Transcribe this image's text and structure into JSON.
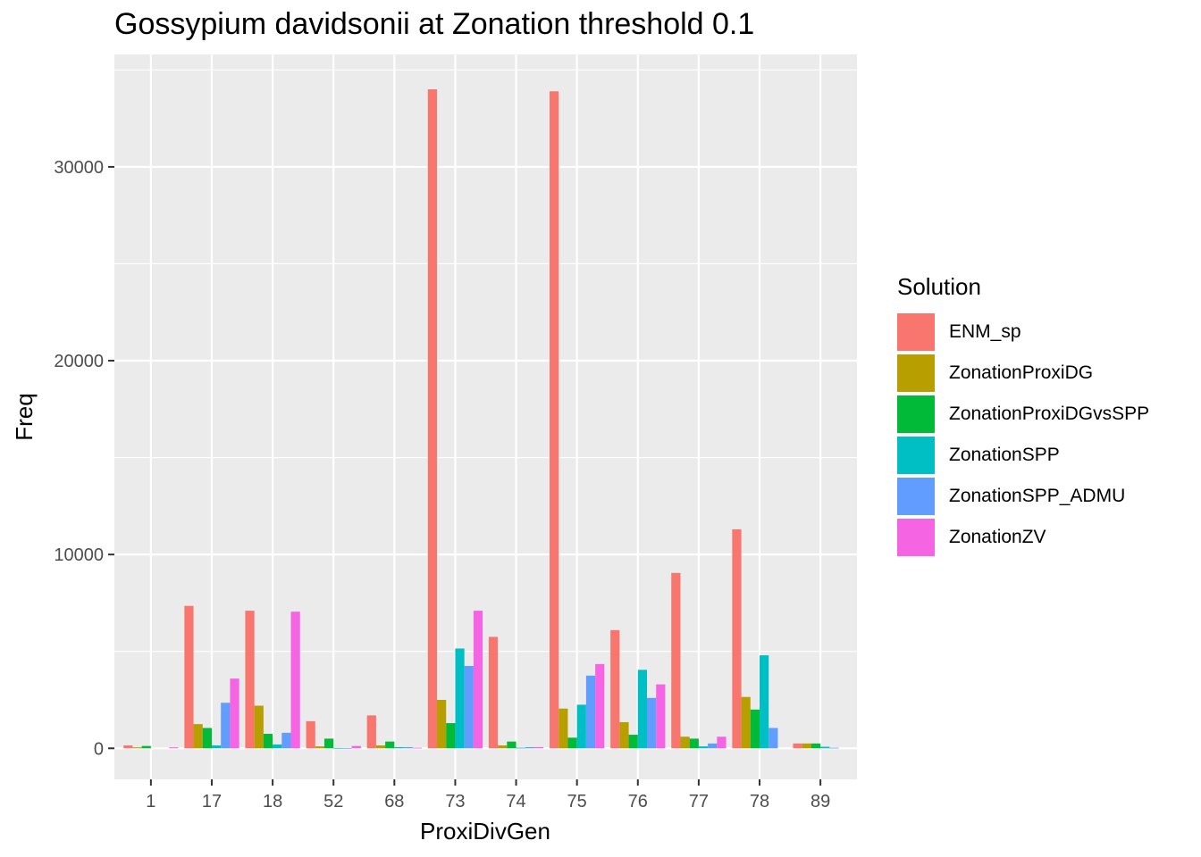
{
  "chart_data": {
    "type": "bar",
    "title": "Gossypium davidsonii at Zonation threshold 0.1",
    "xlabel": "ProxiDivGen",
    "ylabel": "Freq",
    "categories": [
      "1",
      "17",
      "18",
      "52",
      "68",
      "73",
      "74",
      "75",
      "76",
      "77",
      "78",
      "89"
    ],
    "ylim": [
      -1600,
      35800
    ],
    "yticks": [
      0,
      10000,
      20000,
      30000
    ],
    "grid": true,
    "legend_position": "right",
    "legend_title": "Solution",
    "series": [
      {
        "name": "ENM_sp",
        "color": "#F8766D",
        "values": [
          150,
          7350,
          7100,
          1400,
          1700,
          34000,
          5750,
          33900,
          6100,
          9050,
          11300,
          250
        ]
      },
      {
        "name": "ZonationProxiDG",
        "color": "#B79F00",
        "values": [
          50,
          1250,
          2200,
          100,
          150,
          2500,
          150,
          2050,
          1350,
          600,
          2650,
          250
        ]
      },
      {
        "name": "ZonationProxiDGvsSPP",
        "color": "#00BA38",
        "values": [
          120,
          1050,
          750,
          500,
          350,
          1300,
          350,
          550,
          700,
          500,
          2000,
          250
        ]
      },
      {
        "name": "ZonationSPP",
        "color": "#00BFC4",
        "values": [
          0,
          150,
          200,
          20,
          60,
          5150,
          30,
          2250,
          4050,
          100,
          4800,
          80
        ]
      },
      {
        "name": "ZonationSPP_ADMU",
        "color": "#619CFF",
        "values": [
          0,
          2350,
          800,
          20,
          60,
          4250,
          60,
          3750,
          2600,
          250,
          1050,
          30
        ]
      },
      {
        "name": "ZonationZV",
        "color": "#F564E3",
        "values": [
          50,
          3600,
          7050,
          120,
          30,
          7100,
          60,
          4350,
          3300,
          600,
          0,
          0
        ]
      }
    ]
  }
}
